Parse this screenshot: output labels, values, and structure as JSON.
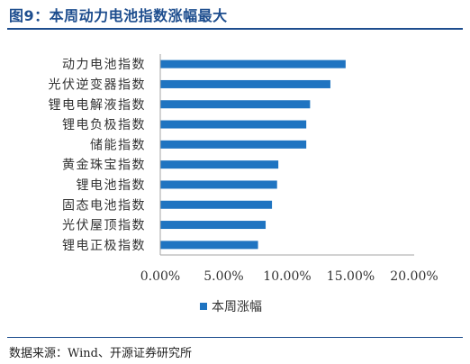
{
  "figure": {
    "title": "图9：本周动力电池指数涨幅最大",
    "source": "数据来源：Wind、开源证券研究所"
  },
  "chart_data": {
    "type": "bar",
    "orientation": "horizontal",
    "categories": [
      "动力电池指数",
      "光伏逆变器指数",
      "锂电电解液指数",
      "锂电负极指数",
      "储能指数",
      "黄金珠宝指数",
      "锂电池指数",
      "固态电池指数",
      "光伏屋顶指数",
      "锂电正极指数"
    ],
    "series": [
      {
        "name": "本周涨幅",
        "values": [
          14.6,
          13.4,
          11.8,
          11.5,
          11.5,
          9.3,
          9.2,
          8.8,
          8.3,
          7.7
        ],
        "color": "#1f74c1"
      }
    ],
    "xlim": [
      0,
      20
    ],
    "xticks": [
      "0.00%",
      "5.00%",
      "10.00%",
      "15.00%",
      "20.00%"
    ],
    "grid": false,
    "legend_position": "bottom"
  }
}
